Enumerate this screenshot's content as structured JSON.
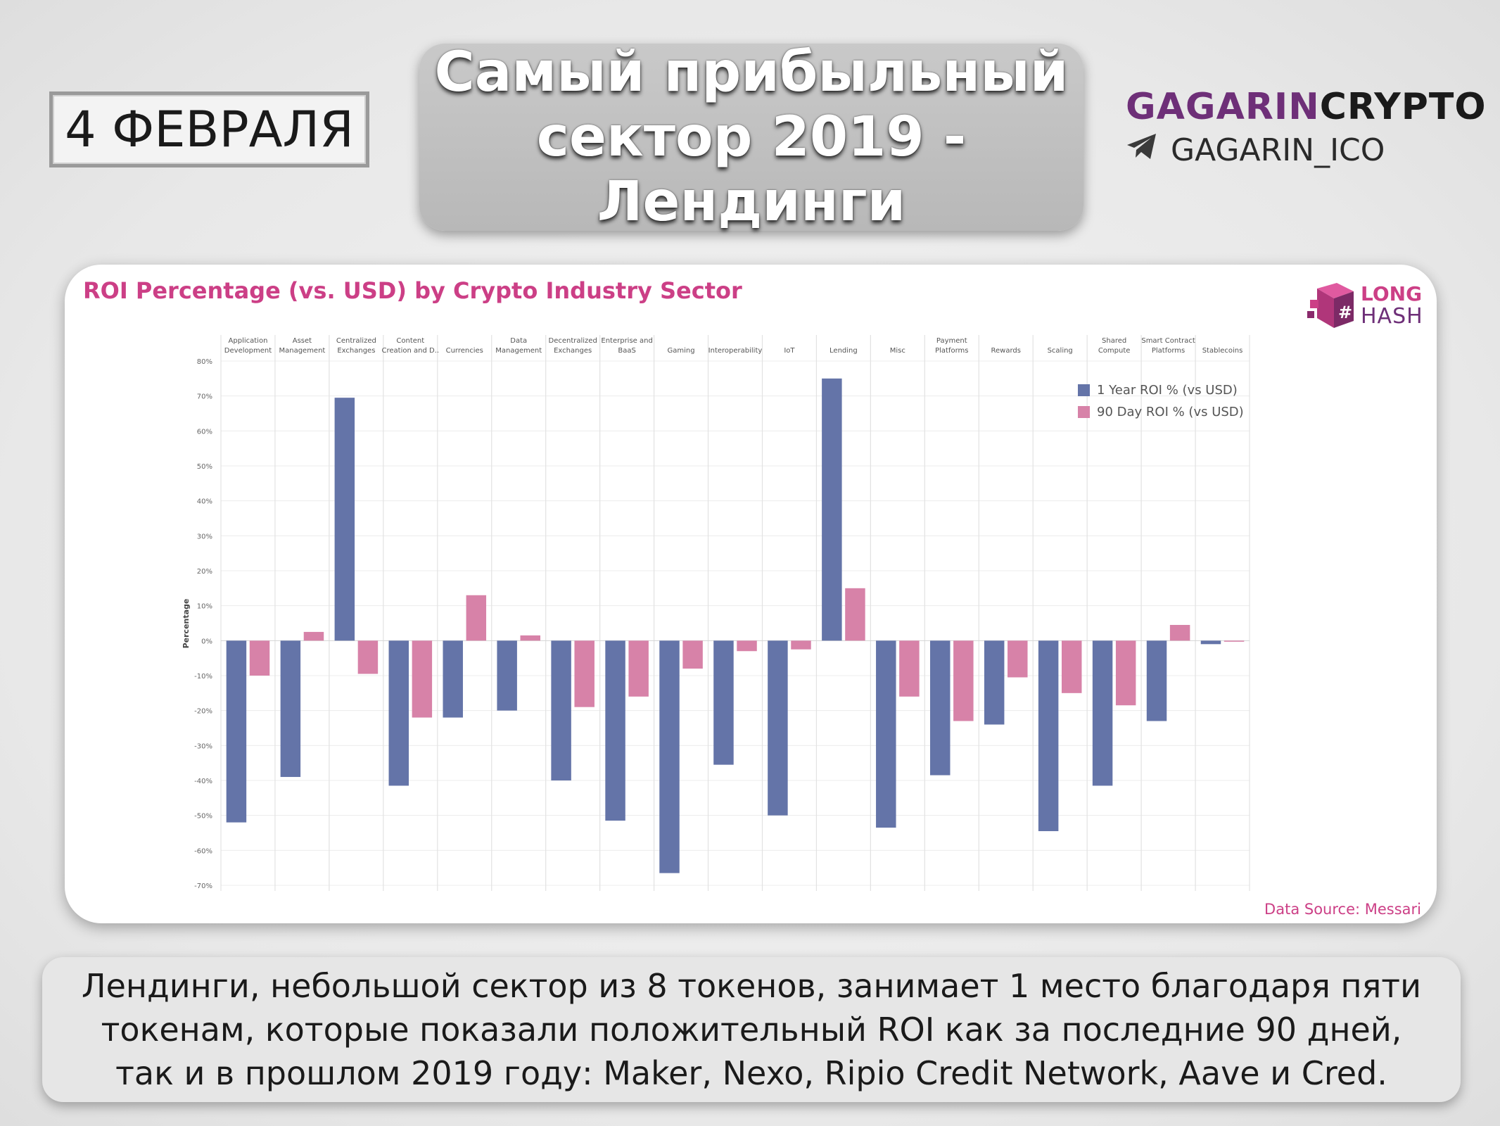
{
  "header": {
    "date": "4 ФЕВРАЛЯ",
    "title_line1": "Самый прибыльный",
    "title_line2": "сектор 2019 - Лендинги"
  },
  "brand": {
    "name_part1": "GAGARIN",
    "name_part2": "CRYPTO",
    "handle": "GAGARIN_ICO",
    "icon": "telegram-icon"
  },
  "chart_card": {
    "logo_long": "LONG",
    "logo_hash": "HASH",
    "data_source": "Data Source: Messari"
  },
  "caption": {
    "line1": "Лендинги, небольшой сектор из 8 токенов, занимает 1 место благодаря пяти",
    "line2": "токенам, которые показали положительный ROI как за последние 90 дней,",
    "line3": "так и в прошлом 2019 году: Maker, Nexo, Ripio Credit Network, Aave и Cred."
  },
  "colors": {
    "series_1year": "#6474a8",
    "series_90day": "#d782a8",
    "chart_title": "#cc3f86",
    "brand_purple": "#6e2f78"
  },
  "chart_data": {
    "type": "bar",
    "title": "ROI Percentage (vs. USD) by Crypto Industry Sector",
    "xlabel": "",
    "ylabel": "Percentage",
    "ylim": [
      -70,
      80
    ],
    "yticks": [
      80,
      70,
      60,
      50,
      40,
      30,
      20,
      10,
      0,
      -10,
      -20,
      -30,
      -40,
      -50,
      -60,
      -70
    ],
    "ytick_labels": [
      "80%",
      "70%",
      "60%",
      "50%",
      "40%",
      "30%",
      "20%",
      "10%",
      "0%",
      "-10%",
      "-20%",
      "-30%",
      "-40%",
      "-50%",
      "-60%",
      "-70%"
    ],
    "grid": true,
    "legend_position": "top-right",
    "categories": [
      [
        "Application",
        "Development"
      ],
      [
        "Asset",
        "Management"
      ],
      [
        "Centralized",
        "Exchanges"
      ],
      [
        "Content",
        "Creation and D.."
      ],
      [
        "Currencies"
      ],
      [
        "Data",
        "Management"
      ],
      [
        "Decentralized",
        "Exchanges"
      ],
      [
        "Enterprise and",
        "BaaS"
      ],
      [
        "Gaming"
      ],
      [
        "Interoperability"
      ],
      [
        "IoT"
      ],
      [
        "Lending"
      ],
      [
        "Misc"
      ],
      [
        "Payment",
        "Platforms"
      ],
      [
        "Rewards"
      ],
      [
        "Scaling"
      ],
      [
        "Shared",
        "Compute"
      ],
      [
        "Smart Contract",
        "Platforms"
      ],
      [
        "Stablecoins"
      ]
    ],
    "series": [
      {
        "name": "1 Year ROI % (vs USD)",
        "values": [
          -52,
          -39,
          69.5,
          -41.5,
          -22,
          -20,
          -40,
          -51.5,
          -66.5,
          -35.5,
          -50,
          75,
          -53.5,
          -38.5,
          -24,
          -54.5,
          -41.5,
          -23,
          -1
        ]
      },
      {
        "name": "90 Day ROI % (vs USD)",
        "values": [
          -10,
          2.5,
          -9.5,
          -22,
          13,
          1.5,
          -19,
          -16,
          -8,
          -3,
          -2.5,
          15,
          -16,
          -23,
          -10.5,
          -15,
          -18.5,
          4.5,
          0
        ]
      }
    ]
  }
}
